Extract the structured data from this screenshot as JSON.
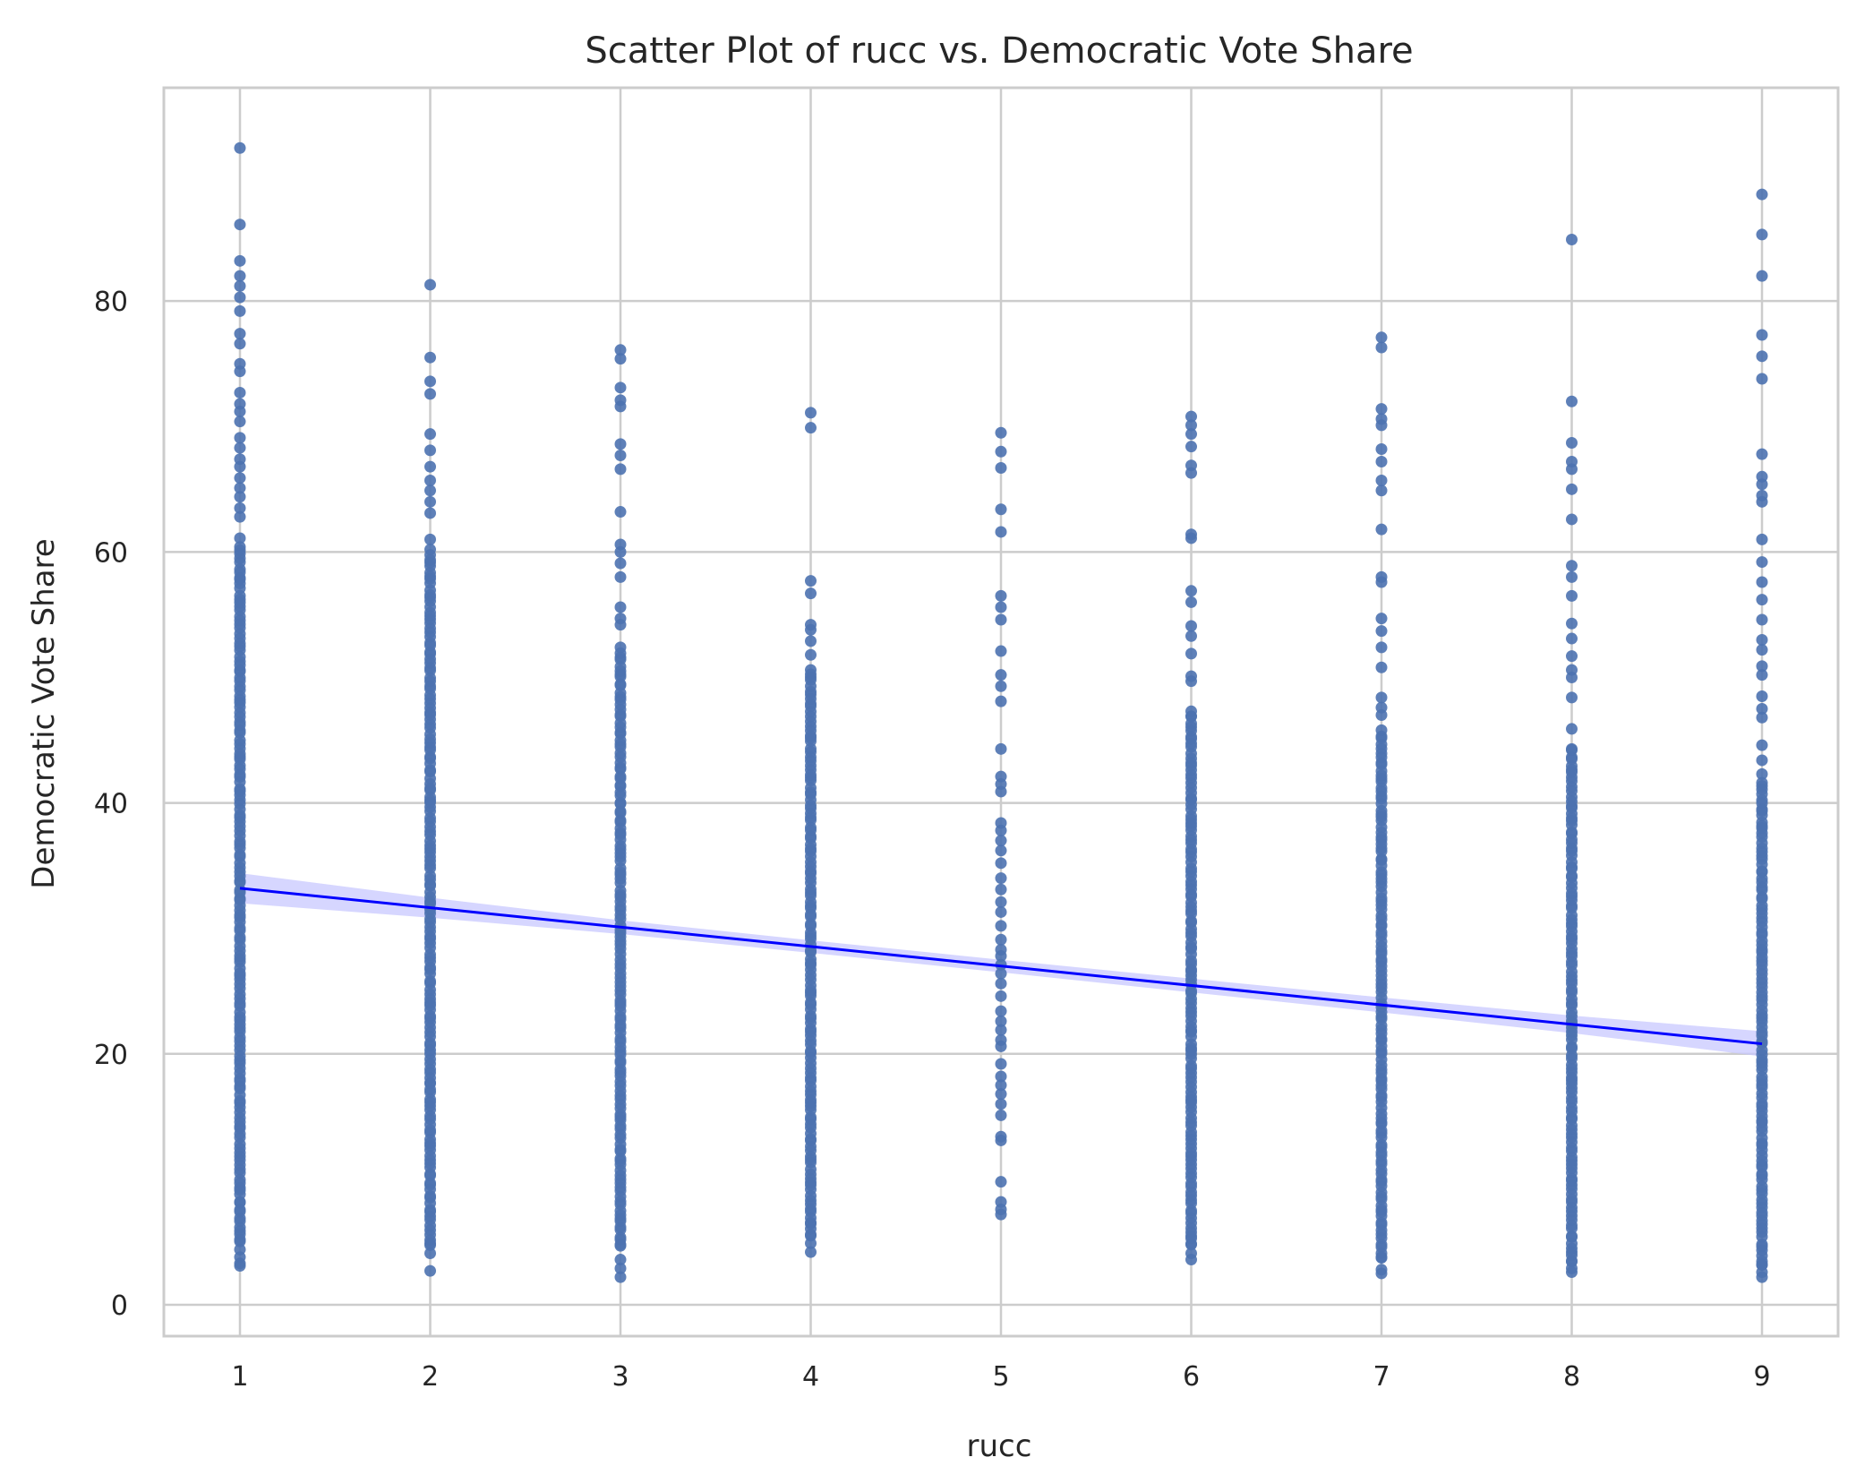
{
  "chart_data": {
    "type": "scatter",
    "title": "Scatter Plot of rucc vs. Democratic Vote Share",
    "xlabel": "rucc",
    "ylabel": "Democratic Vote Share",
    "xlim": [
      0.6,
      9.4
    ],
    "ylim": [
      -2.5,
      97
    ],
    "x_ticks": [
      1,
      2,
      3,
      4,
      5,
      6,
      7,
      8,
      9
    ],
    "y_ticks": [
      0,
      20,
      40,
      60,
      80
    ],
    "grid": true,
    "legend": "none",
    "colors": {
      "points": "#4c72b0",
      "regression_line": "#0000ff",
      "confidence_band": "#c8c8ff",
      "grid": "#cccccc",
      "spine": "#cccccc"
    },
    "series": [
      {
        "x": 1,
        "range": [
          3.1,
          92.2
        ],
        "extreme_values": [
          92.2,
          86.1,
          83.2,
          82.0,
          81.2,
          80.3,
          79.2,
          77.4,
          76.6,
          75.0,
          74.4,
          72.7,
          71.8,
          71.2,
          70.4,
          69.1,
          68.3,
          67.4,
          66.8,
          65.9,
          65.1,
          64.4,
          63.5,
          62.8,
          61.1,
          60.4,
          5.2,
          4.4,
          3.8,
          3.3,
          3.1
        ]
      },
      {
        "x": 2,
        "range": [
          2.7,
          81.3
        ],
        "extreme_values": [
          81.3,
          75.5,
          73.6,
          72.6,
          69.4,
          68.1,
          66.8,
          65.7,
          64.9,
          64.0,
          63.1,
          61.0,
          60.2,
          4.9,
          4.1,
          2.7
        ]
      },
      {
        "x": 3,
        "range": [
          2.2,
          76.1
        ],
        "extreme_values": [
          76.1,
          75.4,
          73.1,
          72.1,
          71.6,
          68.6,
          67.7,
          66.6,
          63.2,
          60.6,
          60.0,
          59.1,
          58.0,
          55.6,
          54.7,
          54.2,
          52.4,
          4.8,
          3.6,
          2.9,
          2.2
        ]
      },
      {
        "x": 4,
        "range": [
          4.2,
          71.1
        ],
        "extreme_values": [
          71.1,
          69.9,
          57.7,
          56.7,
          54.2,
          53.8,
          52.9,
          51.8,
          50.6,
          5.6,
          4.9,
          4.2
        ]
      },
      {
        "x": 5,
        "range": [
          7.2,
          69.5
        ],
        "extreme_values": [
          69.5,
          68.0,
          66.7,
          63.4,
          61.6,
          56.5,
          55.6,
          54.6,
          52.1,
          50.2,
          49.3,
          48.1,
          44.3,
          42.1,
          41.5,
          40.9,
          38.4,
          37.8,
          37.0,
          36.2,
          35.2,
          34.0,
          33.1,
          32.1,
          31.3,
          30.2,
          29.1,
          28.3,
          27.8,
          27.1,
          26.4,
          25.6,
          24.6,
          23.4,
          22.6,
          21.9,
          21.1,
          20.6,
          19.2,
          18.2,
          17.5,
          16.8,
          16.0,
          15.1,
          13.4,
          13.1,
          9.8,
          8.2,
          7.6,
          7.2
        ]
      },
      {
        "x": 6,
        "range": [
          3.6,
          70.8
        ],
        "extreme_values": [
          70.8,
          70.1,
          69.4,
          68.4,
          66.9,
          66.3,
          61.4,
          61.1,
          56.9,
          56.0,
          54.1,
          53.3,
          51.9,
          50.1,
          49.7,
          47.3,
          46.9,
          4.8,
          4.1,
          3.6
        ]
      },
      {
        "x": 7,
        "range": [
          2.5,
          77.1
        ],
        "extreme_values": [
          77.1,
          76.3,
          71.4,
          70.6,
          70.1,
          68.2,
          67.2,
          65.7,
          64.9,
          61.8,
          58.0,
          57.6,
          54.7,
          53.7,
          52.4,
          50.8,
          48.4,
          47.6,
          47.0,
          45.8,
          3.8,
          2.8,
          2.5
        ]
      },
      {
        "x": 8,
        "range": [
          2.6,
          84.9
        ],
        "extreme_values": [
          84.9,
          72.0,
          68.7,
          67.2,
          66.6,
          65.0,
          62.6,
          58.9,
          58.0,
          56.5,
          54.3,
          53.1,
          51.7,
          50.6,
          50.0,
          48.4,
          45.9,
          44.3,
          3.5,
          2.9,
          2.6
        ]
      },
      {
        "x": 9,
        "range": [
          2.2,
          88.5
        ],
        "extreme_values": [
          88.5,
          85.3,
          82.0,
          77.3,
          75.6,
          73.8,
          67.8,
          66.0,
          65.4,
          64.5,
          64.0,
          61.0,
          59.2,
          57.6,
          56.2,
          54.6,
          53.0,
          52.2,
          50.9,
          50.2,
          48.5,
          47.5,
          46.8,
          44.6,
          43.4,
          42.3,
          41.6,
          3.2,
          2.6,
          2.2
        ]
      }
    ],
    "regression_line": {
      "x": [
        1,
        9
      ],
      "y": [
        33.2,
        20.8
      ],
      "ci_halfwidth": [
        1.2,
        0.8,
        0.55,
        0.5,
        0.5,
        0.55,
        0.6,
        0.7,
        1.0
      ]
    }
  }
}
